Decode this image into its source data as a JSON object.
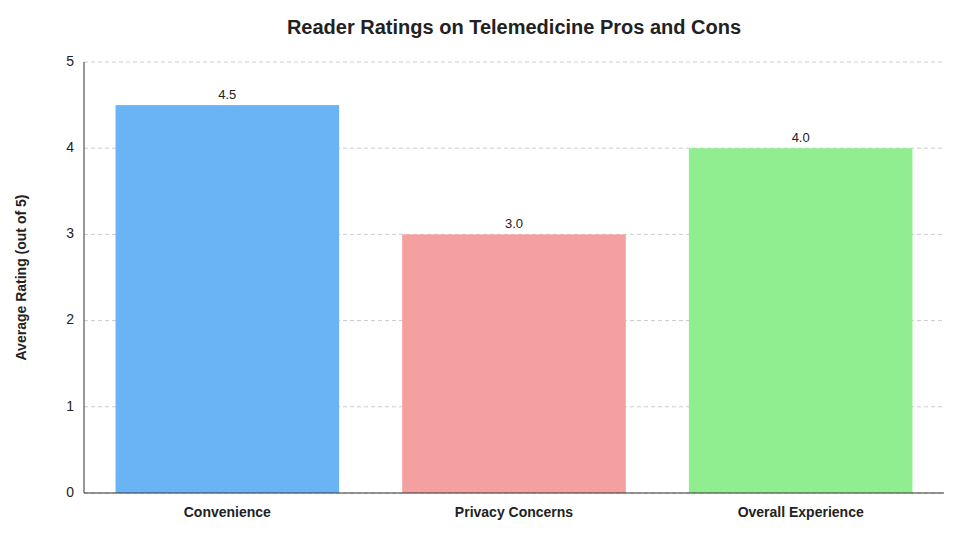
{
  "chart_data": {
    "type": "bar",
    "title": "Reader Ratings on Telemedicine Pros and Cons",
    "categories": [
      "Convenience",
      "Privacy Concerns",
      "Overall Experience"
    ],
    "values": [
      4.5,
      3.0,
      4.0
    ],
    "value_labels": [
      "4.5",
      "3.0",
      "4.0"
    ],
    "colors": [
      "#6ab4f5",
      "#f5a0a0",
      "#90ee90"
    ],
    "ylabel": "Average Rating (out of 5)",
    "ylim": [
      0,
      5
    ],
    "yticks": [
      0,
      1,
      2,
      3,
      4,
      5
    ],
    "grid": true,
    "data_labels": true
  }
}
